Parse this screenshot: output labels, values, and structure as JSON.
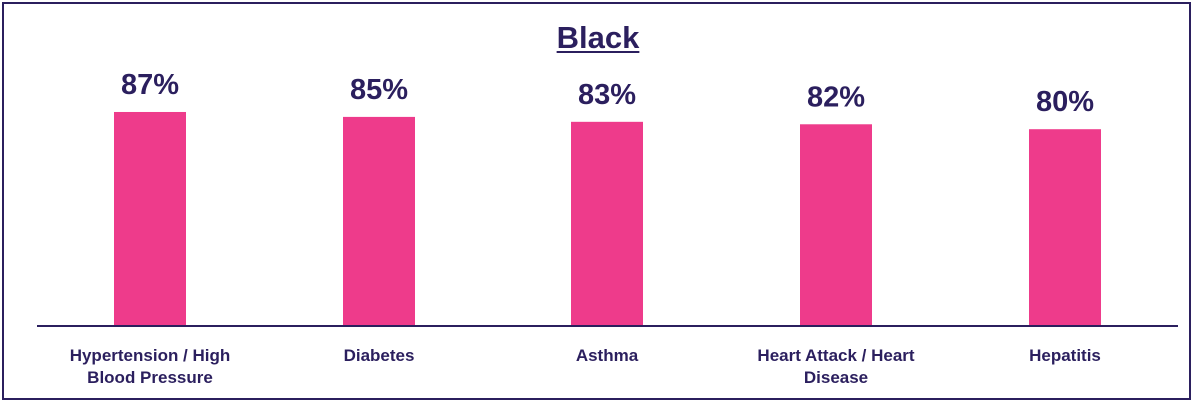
{
  "chart_data": {
    "type": "bar",
    "title": "Black",
    "categories": [
      "Hypertension / High Blood Pressure",
      "Diabetes",
      "Asthma",
      "Heart Attack / Heart Disease",
      "Hepatitis"
    ],
    "category_lines": [
      [
        "Hypertension / High",
        "Blood Pressure"
      ],
      [
        "Diabetes"
      ],
      [
        "Asthma"
      ],
      [
        "Heart Attack / Heart",
        "Disease"
      ],
      [
        "Hepatitis"
      ]
    ],
    "values": [
      87,
      85,
      83,
      82,
      80
    ],
    "value_labels": [
      "87%",
      "85%",
      "83%",
      "82%",
      "80%"
    ],
    "ylim": [
      0,
      100
    ],
    "bar_color": "#ee3b8b",
    "text_color": "#2b1f5e",
    "axis_color": "#2b1f5e"
  }
}
